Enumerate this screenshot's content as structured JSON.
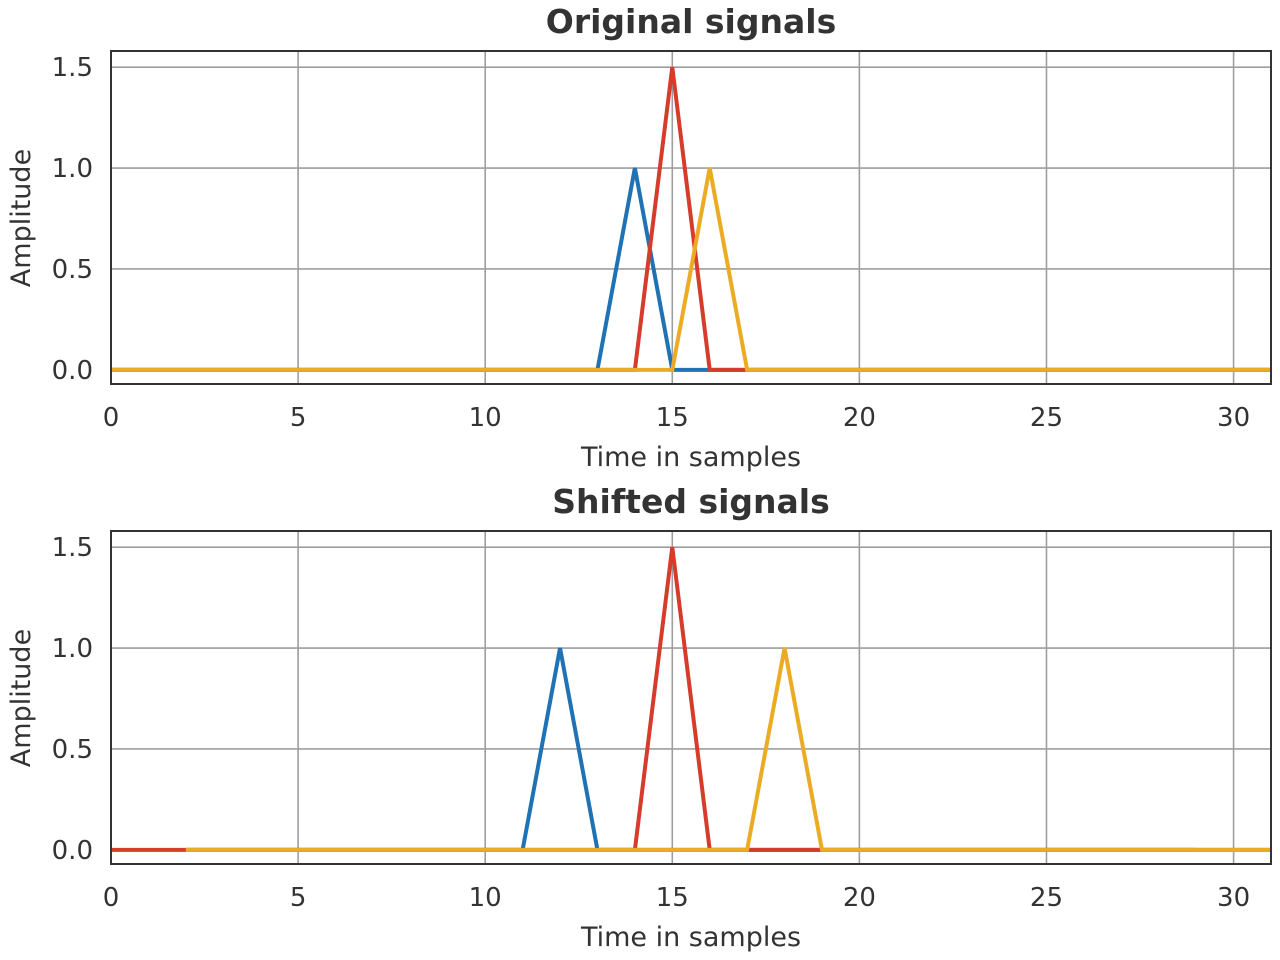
{
  "chart_data": [
    {
      "type": "line",
      "title": "Original signals",
      "xlabel": "Time in samples",
      "ylabel": "Amplitude",
      "xlim": [
        0,
        31
      ],
      "ylim": [
        -0.07,
        1.58
      ],
      "xticks": [
        0,
        5,
        10,
        15,
        20,
        25,
        30
      ],
      "yticks": [
        0.0,
        0.5,
        1.0,
        1.5
      ],
      "xtick_labels": [
        "0",
        "5",
        "10",
        "15",
        "20",
        "25",
        "30"
      ],
      "ytick_labels": [
        "0.0",
        "0.5",
        "1.0",
        "1.5"
      ],
      "grid": true,
      "series": [
        {
          "color": "#1f72b4",
          "x": [
            0,
            13,
            14,
            15,
            31
          ],
          "y": [
            0,
            0,
            1.0,
            0,
            0
          ]
        },
        {
          "color": "#d63c2b",
          "x": [
            0,
            14,
            15,
            16,
            31
          ],
          "y": [
            0,
            0,
            1.5,
            0,
            0
          ]
        },
        {
          "color": "#ecab25",
          "x": [
            0,
            15,
            16,
            17,
            31
          ],
          "y": [
            0,
            0,
            1.0,
            0,
            0
          ]
        }
      ]
    },
    {
      "type": "line",
      "title": "Shifted signals",
      "xlabel": "Time in samples",
      "ylabel": "Amplitude",
      "xlim": [
        0,
        31
      ],
      "ylim": [
        -0.07,
        1.58
      ],
      "xticks": [
        0,
        5,
        10,
        15,
        20,
        25,
        30
      ],
      "yticks": [
        0.0,
        0.5,
        1.0,
        1.5
      ],
      "xtick_labels": [
        "0",
        "5",
        "10",
        "15",
        "20",
        "25",
        "30"
      ],
      "ytick_labels": [
        "0.0",
        "0.5",
        "1.0",
        "1.5"
      ],
      "grid": true,
      "series": [
        {
          "color": "#1f72b4",
          "x": [
            2,
            11,
            12,
            13,
            29
          ],
          "y": [
            0,
            0,
            1.0,
            0,
            0
          ]
        },
        {
          "color": "#d63c2b",
          "x": [
            0,
            14,
            15,
            16,
            31
          ],
          "y": [
            0,
            0,
            1.5,
            0,
            0
          ]
        },
        {
          "color": "#ecab25",
          "x": [
            2,
            17,
            18,
            19,
            31
          ],
          "y": [
            0,
            0,
            1.0,
            0,
            0
          ]
        }
      ]
    }
  ]
}
